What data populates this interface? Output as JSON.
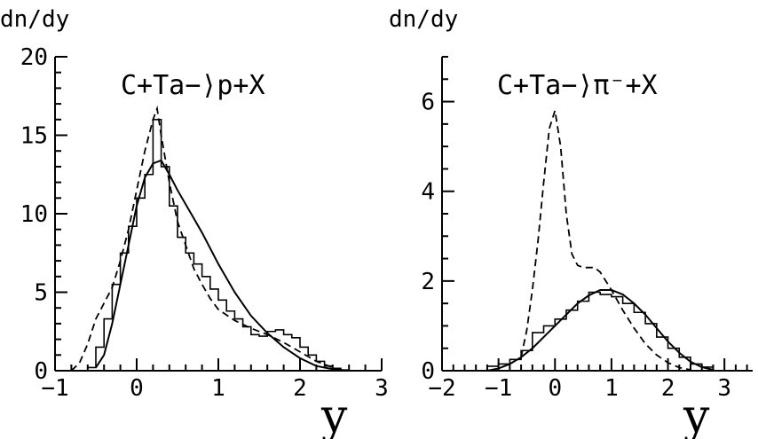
{
  "chart_data": [
    {
      "type": "line",
      "title": "C+Ta−⟩p+X",
      "ylabel": "dn/dy",
      "xlabel": "y",
      "xlim": [
        -1,
        3
      ],
      "ylim": [
        0,
        20
      ],
      "x_ticks": [
        -1,
        0,
        1,
        2,
        3
      ],
      "x_tick_labels": [
        "−1",
        "0",
        "1",
        "2",
        "3"
      ],
      "y_ticks": [
        0,
        5,
        10,
        15,
        20
      ],
      "y_tick_labels": [
        "0",
        "5",
        "10",
        "15",
        "20"
      ],
      "histogram": {
        "bin_width": 0.1,
        "bins": [
          [
            -0.6,
            0.2
          ],
          [
            -0.5,
            1.5
          ],
          [
            -0.4,
            3.3
          ],
          [
            -0.3,
            5.5
          ],
          [
            -0.2,
            7.5
          ],
          [
            -0.1,
            9.2
          ],
          [
            0.0,
            11.0
          ],
          [
            0.1,
            12.5
          ],
          [
            0.2,
            16.0
          ],
          [
            0.3,
            13.0
          ],
          [
            0.4,
            10.5
          ],
          [
            0.5,
            8.5
          ],
          [
            0.6,
            7.5
          ],
          [
            0.7,
            6.8
          ],
          [
            0.8,
            6.0
          ],
          [
            0.9,
            5.2
          ],
          [
            1.0,
            4.5
          ],
          [
            1.1,
            3.8
          ],
          [
            1.2,
            3.3
          ],
          [
            1.3,
            2.8
          ],
          [
            1.4,
            2.3
          ],
          [
            1.5,
            2.2
          ],
          [
            1.6,
            2.5
          ],
          [
            1.7,
            2.6
          ],
          [
            1.8,
            2.3
          ],
          [
            1.9,
            2.1
          ],
          [
            2.0,
            1.5
          ],
          [
            2.1,
            1.0
          ],
          [
            2.2,
            0.6
          ],
          [
            2.3,
            0.3
          ],
          [
            2.4,
            0.15
          ],
          [
            2.5,
            0.05
          ]
        ]
      },
      "solid_curve": {
        "x": [
          -0.5,
          -0.4,
          -0.3,
          -0.2,
          -0.1,
          0.0,
          0.1,
          0.2,
          0.3,
          0.4,
          0.5,
          0.6,
          0.7,
          0.8,
          0.9,
          1.0,
          1.2,
          1.4,
          1.6,
          1.8,
          2.0,
          2.2,
          2.4,
          2.6
        ],
        "y": [
          0.2,
          1.0,
          3.0,
          5.5,
          8.0,
          10.5,
          12.3,
          13.2,
          13.4,
          12.5,
          11.5,
          10.6,
          9.7,
          8.8,
          7.8,
          6.8,
          5.0,
          3.5,
          2.4,
          1.5,
          0.8,
          0.3,
          0.1,
          0.0
        ]
      },
      "dashed_curve": {
        "x": [
          -0.8,
          -0.7,
          -0.6,
          -0.5,
          -0.4,
          -0.3,
          -0.2,
          -0.1,
          0.0,
          0.1,
          0.2,
          0.25,
          0.3,
          0.4,
          0.5,
          0.6,
          0.7,
          0.8,
          0.9,
          1.0,
          1.2,
          1.4,
          1.6,
          1.8,
          2.0,
          2.2,
          2.4
        ],
        "y": [
          0.0,
          0.5,
          1.7,
          3.3,
          4.3,
          5.3,
          7.0,
          9.0,
          11.5,
          14.0,
          16.0,
          16.7,
          15.0,
          12.0,
          9.5,
          8.0,
          6.5,
          5.5,
          4.6,
          3.9,
          3.2,
          2.7,
          2.3,
          1.8,
          1.2,
          0.6,
          0.2
        ]
      }
    },
    {
      "type": "line",
      "title": "C+Ta−⟩π⁻+X",
      "ylabel": "dn/dy",
      "xlabel": "y",
      "xlim": [
        -2,
        3.5
      ],
      "ylim": [
        0,
        7
      ],
      "x_ticks": [
        -2,
        -1,
        0,
        1,
        2,
        3
      ],
      "x_tick_labels": [
        "−2",
        "−1",
        "0",
        "1",
        "2",
        "3"
      ],
      "y_ticks": [
        0,
        2,
        4,
        6
      ],
      "y_tick_labels": [
        "0",
        "2",
        "4",
        "6"
      ],
      "histogram": {
        "bin_width": 0.2,
        "bins": [
          [
            -1.2,
            0.1
          ],
          [
            -1.0,
            0.15
          ],
          [
            -0.8,
            0.25
          ],
          [
            -0.6,
            0.45
          ],
          [
            -0.4,
            0.85
          ],
          [
            -0.2,
            1.0
          ],
          [
            0.0,
            1.15
          ],
          [
            0.2,
            1.35
          ],
          [
            0.4,
            1.55
          ],
          [
            0.6,
            1.75
          ],
          [
            0.8,
            1.7
          ],
          [
            1.0,
            1.65
          ],
          [
            1.2,
            1.5
          ],
          [
            1.4,
            1.3
          ],
          [
            1.6,
            1.05
          ],
          [
            1.8,
            0.75
          ],
          [
            2.0,
            0.5
          ],
          [
            2.2,
            0.3
          ],
          [
            2.4,
            0.15
          ],
          [
            2.6,
            0.08
          ]
        ]
      },
      "solid_curve": {
        "x": [
          -1.2,
          -1.0,
          -0.8,
          -0.6,
          -0.4,
          -0.2,
          0.0,
          0.2,
          0.4,
          0.6,
          0.8,
          1.0,
          1.2,
          1.4,
          1.6,
          1.8,
          2.0,
          2.2,
          2.4,
          2.6,
          2.8
        ],
        "y": [
          0.0,
          0.05,
          0.15,
          0.3,
          0.5,
          0.75,
          1.0,
          1.25,
          1.5,
          1.68,
          1.8,
          1.8,
          1.7,
          1.5,
          1.25,
          0.95,
          0.65,
          0.4,
          0.2,
          0.08,
          0.02
        ]
      },
      "dashed_curve": {
        "x": [
          -0.6,
          -0.5,
          -0.4,
          -0.3,
          -0.2,
          -0.1,
          0.0,
          0.1,
          0.2,
          0.3,
          0.4,
          0.5,
          0.6,
          0.7,
          0.8,
          0.9,
          1.0,
          1.2,
          1.4,
          1.6,
          1.8,
          2.0,
          2.2,
          2.4
        ],
        "y": [
          0.3,
          0.9,
          1.8,
          2.9,
          4.2,
          5.4,
          5.8,
          5.0,
          3.5,
          2.6,
          2.35,
          2.3,
          2.3,
          2.3,
          2.2,
          2.0,
          1.8,
          1.35,
          0.95,
          0.6,
          0.35,
          0.18,
          0.07,
          0.02
        ]
      }
    }
  ]
}
